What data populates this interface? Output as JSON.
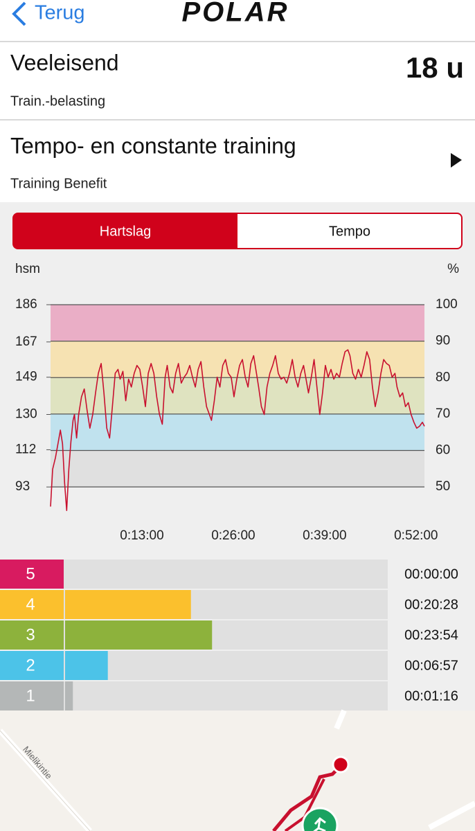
{
  "header": {
    "back": "Terug",
    "logo": "POLAR"
  },
  "load": {
    "title": "Veeleisend",
    "value": "18 u",
    "label": "Train.-belasting"
  },
  "benefit": {
    "title": "Tempo- en constante training",
    "label": "Training Benefit"
  },
  "tabs": {
    "items": [
      "Hartslag",
      "Tempo"
    ],
    "active": 0
  },
  "chart_data": {
    "type": "line",
    "y_label": "hsm",
    "y2_label": "%",
    "color": "#c8102e",
    "band_colors": [
      "#eaaec6",
      "#f6e2b2",
      "#dfe3c0",
      "#c0e2ee",
      "#e0e0e0"
    ],
    "xlim": [
      0,
      53.2
    ],
    "xticks": [
      {
        "value": 13,
        "label": "0:13:00"
      },
      {
        "value": 26,
        "label": "0:26:00"
      },
      {
        "value": 39,
        "label": "0:39:00"
      },
      {
        "value": 52,
        "label": "0:52:00"
      }
    ],
    "ylim": [
      80,
      186
    ],
    "yticks": [
      93,
      112,
      130,
      149,
      167,
      186
    ],
    "y2lim": [
      43,
      100
    ],
    "y2ticks": [
      50,
      60,
      70,
      80,
      90,
      100
    ],
    "x": [
      0,
      0.3,
      0.7,
      1.1,
      1.4,
      1.7,
      2.0,
      2.3,
      2.6,
      2.9,
      3.2,
      3.4,
      3.7,
      4.0,
      4.4,
      4.8,
      5.2,
      5.6,
      6.0,
      6.4,
      6.8,
      7.2,
      7.6,
      8.0,
      8.4,
      8.8,
      9.2,
      9.6,
      9.9,
      10.3,
      10.7,
      11.1,
      11.5,
      11.9,
      12.3,
      12.7,
      13.1,
      13.5,
      13.9,
      14.3,
      14.7,
      15.1,
      15.5,
      15.9,
      16.3,
      16.6,
      17.0,
      17.4,
      17.8,
      18.2,
      18.6,
      19.0,
      19.4,
      19.8,
      20.2,
      20.6,
      21.0,
      21.4,
      21.8,
      22.2,
      22.6,
      22.9,
      23.3,
      23.7,
      24.1,
      24.5,
      24.9,
      25.3,
      25.7,
      26.1,
      26.5,
      26.9,
      27.3,
      27.7,
      28.1,
      28.5,
      28.9,
      29.3,
      29.6,
      30.0,
      30.4,
      30.8,
      31.2,
      31.6,
      32.0,
      32.4,
      32.8,
      33.2,
      33.6,
      34.0,
      34.4,
      34.8,
      35.2,
      35.6,
      36.0,
      36.3,
      36.7,
      37.1,
      37.5,
      37.9,
      38.3,
      38.7,
      39.1,
      39.5,
      39.9,
      40.3,
      40.7,
      41.1,
      41.5,
      41.9,
      42.3,
      42.6,
      43.0,
      43.4,
      43.8,
      44.2,
      44.6,
      45.0,
      45.4,
      45.8,
      46.2,
      46.6,
      47.0,
      47.4,
      47.8,
      48.2,
      48.6,
      49.0,
      49.3,
      49.7,
      50.1,
      50.5,
      50.9,
      51.3,
      51.7,
      52.1,
      52.5,
      52.9,
      53.2
    ],
    "values": [
      83,
      102,
      108,
      116,
      122,
      115,
      95,
      81,
      102,
      116,
      127,
      130,
      118,
      130,
      139,
      143,
      132,
      123,
      130,
      141,
      151,
      156,
      141,
      123,
      118,
      134,
      151,
      153,
      148,
      152,
      137,
      148,
      144,
      151,
      155,
      153,
      144,
      134,
      151,
      156,
      151,
      139,
      130,
      125,
      149,
      155,
      144,
      141,
      151,
      156,
      146,
      149,
      151,
      155,
      149,
      144,
      153,
      157,
      144,
      134,
      130,
      127,
      137,
      149,
      144,
      155,
      158,
      151,
      149,
      139,
      148,
      155,
      158,
      149,
      144,
      156,
      160,
      151,
      144,
      134,
      130,
      144,
      151,
      155,
      160,
      151,
      148,
      149,
      146,
      151,
      158,
      149,
      144,
      151,
      155,
      149,
      141,
      149,
      158,
      144,
      130,
      141,
      155,
      149,
      153,
      148,
      151,
      149,
      156,
      162,
      163,
      160,
      151,
      148,
      153,
      149,
      155,
      162,
      158,
      144,
      134,
      141,
      151,
      158,
      156,
      155,
      149,
      151,
      144,
      139,
      141,
      134,
      136,
      130,
      126,
      123,
      124,
      126,
      124
    ]
  },
  "zones": {
    "xlim": [
      0,
      3162
    ],
    "labels": [
      "5",
      "4",
      "3",
      "2",
      "1"
    ],
    "values": [
      0,
      1228,
      1434,
      417,
      76
    ],
    "value_labels": [
      "00:00:00",
      "00:20:28",
      "00:23:54",
      "00:06:57",
      "00:01:16"
    ],
    "colors": [
      "#d81b60",
      "#fbc02d",
      "#8db23c",
      "#4cc3e8",
      "#b4b7b7"
    ]
  },
  "map": {
    "street_label": "Mielikintie"
  }
}
